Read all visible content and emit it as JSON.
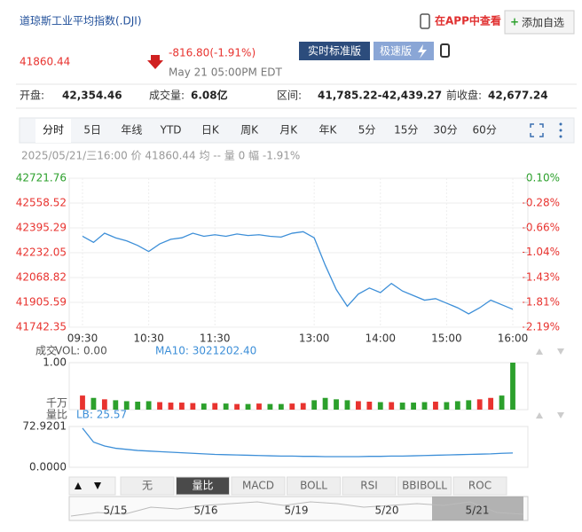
{
  "header": {
    "title": "道琼斯工业平均指数(.DJI)",
    "app_link": "在APP中查看",
    "add_watch": "添加自选",
    "price": "41860.44",
    "change": "-816.80(-1.91%)",
    "time": "May 21 05:00PM EDT",
    "btn_realtime": "实时标准版",
    "btn_fast": "极速版"
  },
  "stats": [
    {
      "label": "开盘:",
      "value": "42,354.46"
    },
    {
      "label": "成交量:",
      "value": "6.08亿"
    },
    {
      "label": "区间:",
      "value": "41,785.22-42,439.27"
    },
    {
      "label": "前收盘:",
      "value": "42,677.24"
    }
  ],
  "tabs": [
    "分时",
    "5日",
    "年线",
    "YTD",
    "日K",
    "周K",
    "月K",
    "年K",
    "5分",
    "15分",
    "30分",
    "60分"
  ],
  "info": "2025/05/21/三16:00 价 41860.44 均 -- 量 0 幅 -1.91%",
  "chart_data": [
    {
      "type": "line",
      "up_color": "#2ca02c",
      "down_color": "#e8332f",
      "categories": [
        "09:30",
        null,
        null,
        null,
        null,
        null,
        "10:30",
        null,
        null,
        null,
        null,
        null,
        "11:30",
        null,
        null,
        null,
        null,
        null,
        null,
        null,
        null,
        "13:00",
        null,
        null,
        null,
        null,
        null,
        "14:00",
        null,
        null,
        null,
        null,
        null,
        "15:00",
        null,
        null,
        null,
        null,
        null,
        "16:00"
      ],
      "series": [
        {
          "color": "#3d8fd8",
          "values": [
            42340,
            42300,
            42360,
            42330,
            42310,
            42280,
            42240,
            42290,
            42320,
            42330,
            42360,
            42340,
            42350,
            42340,
            42355,
            42345,
            42350,
            42340,
            42335,
            42360,
            42370,
            42330,
            42150,
            41990,
            41880,
            41960,
            42000,
            41970,
            42030,
            41980,
            41950,
            41920,
            41930,
            41900,
            41870,
            41830,
            41870,
            41920,
            41890,
            41860
          ]
        }
      ],
      "ylim": [
        41742.35,
        42721.76
      ],
      "yticks": [
        42721.76,
        42558.52,
        42395.29,
        42232.05,
        42068.82,
        41905.59,
        41742.35
      ],
      "y2lim": [
        -2.19,
        0.1
      ],
      "y2ticks": [
        {
          "value": 0.1,
          "label": "0.10%"
        },
        {
          "value": -0.28,
          "label": "-0.28%"
        },
        {
          "value": -0.66,
          "label": "-0.66%"
        },
        {
          "value": -1.04,
          "label": "-1.04%"
        },
        {
          "value": -1.43,
          "label": "-1.43%"
        },
        {
          "value": -1.81,
          "label": "-1.81%"
        },
        {
          "value": -2.19,
          "label": "-2.19%"
        }
      ],
      "grid": true
    },
    {
      "type": "bar",
      "label": "成交",
      "vol": "VOL: 0.00",
      "ma": "MA10: 3021202.40",
      "unit": "千万",
      "values": [
        0.3,
        0.25,
        0.22,
        0.2,
        0.18,
        0.17,
        0.18,
        0.16,
        0.15,
        0.15,
        0.14,
        0.13,
        0.14,
        0.13,
        0.12,
        0.12,
        0.13,
        0.12,
        0.12,
        0.13,
        0.14,
        0.2,
        0.25,
        0.22,
        0.2,
        0.18,
        0.17,
        0.16,
        0.16,
        0.15,
        0.15,
        0.16,
        0.17,
        0.16,
        0.18,
        0.2,
        0.22,
        0.25,
        0.3,
        1
      ],
      "ylim": [
        0,
        1
      ],
      "yticks": [
        {
          "value": 1,
          "label": "1.00"
        }
      ]
    },
    {
      "type": "line",
      "label": "量比",
      "lb": "LB: 25.57",
      "color": "#3d8fd8",
      "values": [
        70,
        45,
        38,
        34,
        32,
        30,
        29,
        28,
        27,
        26,
        25,
        24,
        23,
        22.5,
        22,
        21.5,
        21,
        20.5,
        20,
        20,
        19.5,
        19.5,
        19,
        19,
        19,
        19,
        19.5,
        19.5,
        20,
        20,
        20.5,
        21,
        21.5,
        22,
        22.5,
        23,
        23.5,
        24,
        25,
        25.57
      ],
      "ylim": [
        0,
        72.9201
      ],
      "yticks": [
        72.9201,
        {
          "value": 0,
          "label": "0.0000"
        }
      ]
    }
  ],
  "indicator_tabs": [
    "无",
    "量比",
    "MACD",
    "BOLL",
    "RSI",
    "BBIBOLL",
    "ROC"
  ],
  "navigator": {
    "dates": [
      "5/15",
      "5/16",
      "5/19",
      "5/20",
      "5/21"
    ]
  }
}
